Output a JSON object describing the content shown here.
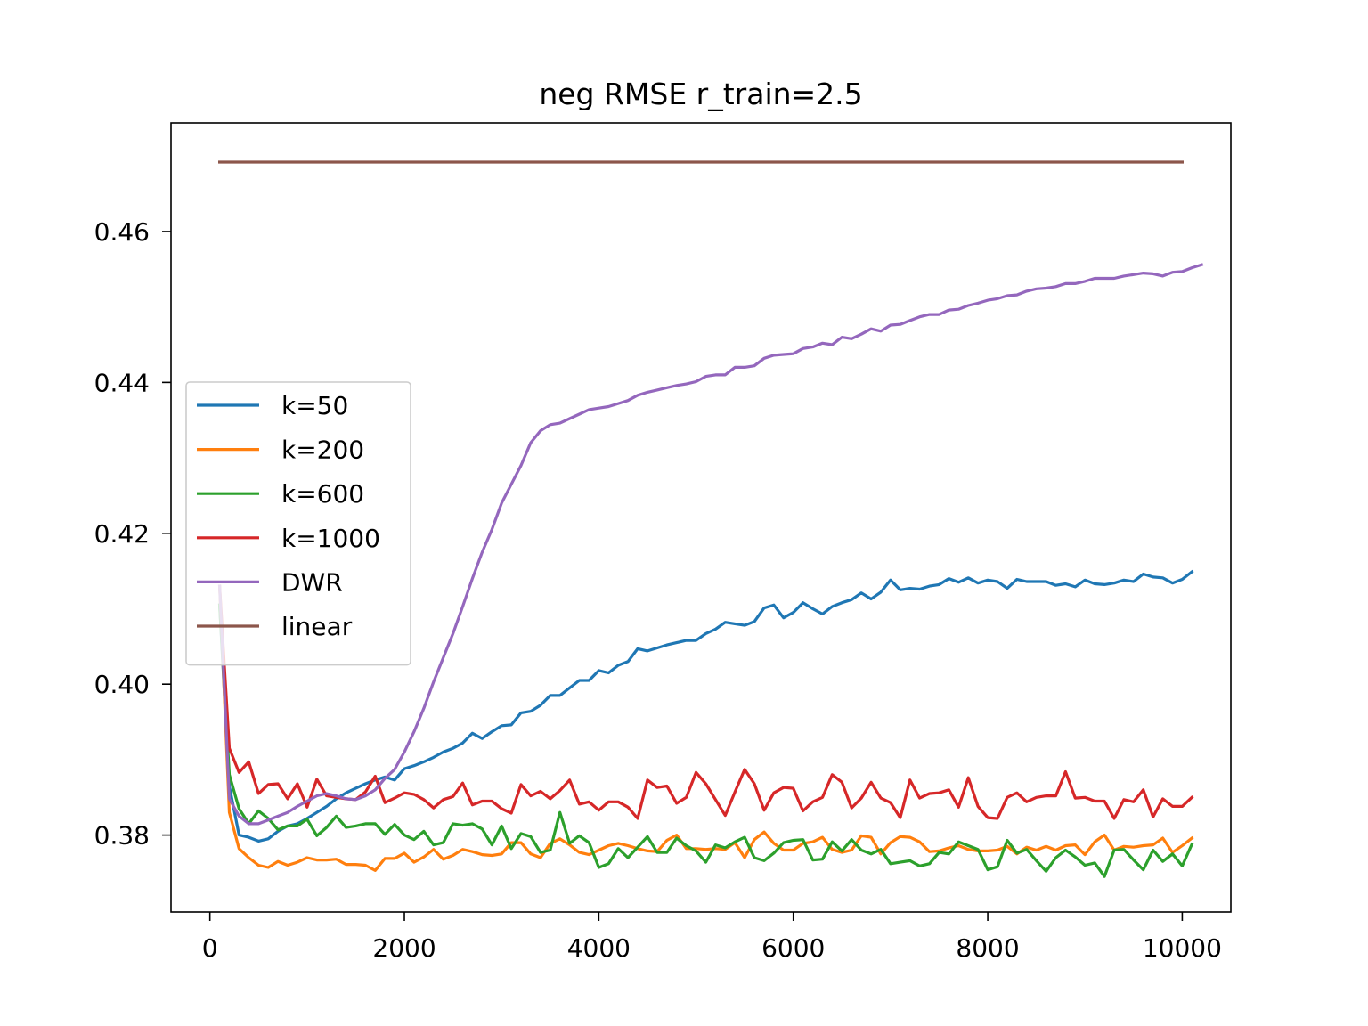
{
  "chart_data": {
    "type": "line",
    "title": "neg RMSE r_train=2.5",
    "xlabel": "",
    "ylabel": "",
    "xlim": [
      -400,
      10500
    ],
    "ylim": [
      0.3698,
      0.4744
    ],
    "xticks": [
      0,
      2000,
      4000,
      6000,
      8000,
      10000
    ],
    "xtick_labels": [
      "0",
      "2000",
      "4000",
      "6000",
      "8000",
      "10000"
    ],
    "yticks": [
      0.38,
      0.4,
      0.42,
      0.44,
      0.46
    ],
    "ytick_labels": [
      "0.38",
      "0.40",
      "0.42",
      "0.44",
      "0.46"
    ],
    "grid": false,
    "legend_position": "center-left",
    "x_start": 100,
    "x_step": 100,
    "series": [
      {
        "name": "k=50",
        "color": "#1f77b4",
        "values": [
          0.4105,
          0.3865,
          0.38,
          0.3797,
          0.3792,
          0.3795,
          0.3805,
          0.3812,
          0.3815,
          0.3822,
          0.383,
          0.3838,
          0.3848,
          0.3856,
          0.3862,
          0.3868,
          0.3873,
          0.3877,
          0.3873,
          0.3888,
          0.3892,
          0.3897,
          0.3903,
          0.391,
          0.3915,
          0.3922,
          0.3935,
          0.3928,
          0.3937,
          0.3945,
          0.3946,
          0.3962,
          0.3964,
          0.3972,
          0.3985,
          0.3985,
          0.3995,
          0.4005,
          0.4005,
          0.4018,
          0.4015,
          0.4025,
          0.403,
          0.4047,
          0.4044,
          0.4048,
          0.4052,
          0.4055,
          0.4058,
          0.4058,
          0.4067,
          0.4073,
          0.4082,
          0.408,
          0.4078,
          0.4083,
          0.4101,
          0.4105,
          0.4088,
          0.4095,
          0.4108,
          0.41,
          0.4093,
          0.4103,
          0.4108,
          0.4112,
          0.4121,
          0.4113,
          0.4122,
          0.4138,
          0.4125,
          0.4127,
          0.4126,
          0.413,
          0.4132,
          0.414,
          0.4135,
          0.4141,
          0.4134,
          0.4138,
          0.4136,
          0.4127,
          0.4139,
          0.4136,
          0.4136,
          0.4136,
          0.4131,
          0.4133,
          0.4129,
          0.4138,
          0.4133,
          0.4132,
          0.4134,
          0.4138,
          0.4136,
          0.4146,
          0.4142,
          0.4141,
          0.4134,
          0.4139,
          0.4149
        ]
      },
      {
        "name": "k=200",
        "color": "#ff7f0e",
        "values": [
          0.413,
          0.383,
          0.3782,
          0.377,
          0.376,
          0.3757,
          0.3765,
          0.376,
          0.3764,
          0.377,
          0.3767,
          0.3767,
          0.3768,
          0.3761,
          0.3761,
          0.376,
          0.3753,
          0.3769,
          0.3769,
          0.3776,
          0.3764,
          0.3771,
          0.3781,
          0.3768,
          0.3773,
          0.3781,
          0.3778,
          0.3774,
          0.3773,
          0.3775,
          0.379,
          0.379,
          0.3775,
          0.377,
          0.3789,
          0.3795,
          0.3787,
          0.3777,
          0.3774,
          0.378,
          0.3786,
          0.3789,
          0.3786,
          0.3782,
          0.3779,
          0.3778,
          0.3793,
          0.38,
          0.3782,
          0.3782,
          0.3781,
          0.3782,
          0.3781,
          0.379,
          0.377,
          0.3794,
          0.3804,
          0.3789,
          0.378,
          0.378,
          0.3789,
          0.3791,
          0.3797,
          0.3781,
          0.3777,
          0.378,
          0.3799,
          0.3797,
          0.3775,
          0.379,
          0.3798,
          0.3797,
          0.3791,
          0.3778,
          0.3779,
          0.3783,
          0.3786,
          0.3781,
          0.3779,
          0.3779,
          0.378,
          0.3785,
          0.3775,
          0.3784,
          0.378,
          0.3785,
          0.378,
          0.3786,
          0.3787,
          0.3774,
          0.3791,
          0.38,
          0.378,
          0.3785,
          0.3784,
          0.3786,
          0.3787,
          0.3796,
          0.3777,
          0.3786,
          0.3796
        ]
      },
      {
        "name": "k=600",
        "color": "#2ca02c",
        "values": [
          0.4105,
          0.388,
          0.3835,
          0.3815,
          0.3832,
          0.3822,
          0.3807,
          0.3812,
          0.3812,
          0.3821,
          0.3799,
          0.381,
          0.3825,
          0.381,
          0.3812,
          0.3815,
          0.3815,
          0.3801,
          0.3814,
          0.38,
          0.3794,
          0.3805,
          0.3787,
          0.379,
          0.3815,
          0.3813,
          0.3815,
          0.3808,
          0.3787,
          0.3812,
          0.3782,
          0.3802,
          0.3798,
          0.3777,
          0.378,
          0.383,
          0.3789,
          0.3799,
          0.379,
          0.3757,
          0.3762,
          0.3782,
          0.377,
          0.3784,
          0.3798,
          0.3777,
          0.3777,
          0.3796,
          0.3786,
          0.3779,
          0.3764,
          0.3787,
          0.3783,
          0.3791,
          0.3797,
          0.377,
          0.3766,
          0.3776,
          0.379,
          0.3793,
          0.3794,
          0.3767,
          0.3768,
          0.3791,
          0.3779,
          0.3794,
          0.378,
          0.3775,
          0.3781,
          0.3762,
          0.3764,
          0.3766,
          0.3759,
          0.3762,
          0.3777,
          0.3775,
          0.3791,
          0.3786,
          0.3781,
          0.3754,
          0.3758,
          0.3793,
          0.3776,
          0.3781,
          0.3766,
          0.3752,
          0.377,
          0.378,
          0.3771,
          0.376,
          0.3763,
          0.3745,
          0.378,
          0.3781,
          0.3767,
          0.3754,
          0.378,
          0.3765,
          0.3775,
          0.3759,
          0.3788
        ]
      },
      {
        "name": "k=1000",
        "color": "#d62728",
        "values": [
          0.413,
          0.3915,
          0.3883,
          0.3897,
          0.3855,
          0.3867,
          0.3868,
          0.3848,
          0.3868,
          0.3837,
          0.3874,
          0.3852,
          0.385,
          0.3848,
          0.3847,
          0.3857,
          0.3878,
          0.3843,
          0.3849,
          0.3856,
          0.3854,
          0.3847,
          0.3836,
          0.3847,
          0.3851,
          0.3869,
          0.384,
          0.3845,
          0.3845,
          0.3835,
          0.3829,
          0.3867,
          0.3852,
          0.3858,
          0.3848,
          0.3859,
          0.3873,
          0.3841,
          0.3844,
          0.3833,
          0.3844,
          0.3844,
          0.3837,
          0.3822,
          0.3873,
          0.3863,
          0.3865,
          0.3842,
          0.385,
          0.3883,
          0.3868,
          0.3847,
          0.3826,
          0.3857,
          0.3887,
          0.3868,
          0.3833,
          0.3856,
          0.3863,
          0.3862,
          0.3832,
          0.3844,
          0.385,
          0.388,
          0.387,
          0.3836,
          0.3849,
          0.387,
          0.3849,
          0.3843,
          0.3823,
          0.3873,
          0.3849,
          0.3855,
          0.3856,
          0.386,
          0.3837,
          0.3876,
          0.3838,
          0.3823,
          0.3822,
          0.385,
          0.3856,
          0.3844,
          0.385,
          0.3852,
          0.3852,
          0.3884,
          0.3849,
          0.385,
          0.3845,
          0.3845,
          0.3822,
          0.3847,
          0.3844,
          0.386,
          0.3824,
          0.3848,
          0.3838,
          0.3838,
          0.385
        ]
      },
      {
        "name": "DWR",
        "color": "#9467bd",
        "values": [
          0.413,
          0.3848,
          0.3825,
          0.3815,
          0.3815,
          0.382,
          0.3825,
          0.383,
          0.3838,
          0.3845,
          0.3852,
          0.3855,
          0.3852,
          0.3848,
          0.3847,
          0.3852,
          0.386,
          0.3875,
          0.3887,
          0.391,
          0.3937,
          0.3968,
          0.4003,
          0.4035,
          0.4067,
          0.4103,
          0.414,
          0.4175,
          0.4205,
          0.424,
          0.4265,
          0.429,
          0.432,
          0.4336,
          0.4344,
          0.4346,
          0.4352,
          0.4358,
          0.4364,
          0.4366,
          0.4368,
          0.4372,
          0.4376,
          0.4383,
          0.4387,
          0.439,
          0.4393,
          0.4396,
          0.4398,
          0.4401,
          0.4408,
          0.441,
          0.441,
          0.442,
          0.442,
          0.4422,
          0.4432,
          0.4436,
          0.4437,
          0.4438,
          0.4445,
          0.4447,
          0.4452,
          0.445,
          0.446,
          0.4458,
          0.4464,
          0.4471,
          0.4468,
          0.4476,
          0.4477,
          0.4482,
          0.4487,
          0.449,
          0.449,
          0.4496,
          0.4497,
          0.4502,
          0.4505,
          0.4509,
          0.4511,
          0.4515,
          0.4516,
          0.4521,
          0.4524,
          0.4525,
          0.4527,
          0.4531,
          0.4531,
          0.4534,
          0.4538,
          0.4538,
          0.4538,
          0.4541,
          0.4543,
          0.4545,
          0.4544,
          0.4541,
          0.4546,
          0.4547,
          0.4552,
          0.4556
        ]
      },
      {
        "name": "linear",
        "color": "#8c564b",
        "values": [
          0.4692,
          0.4692,
          0.4692,
          0.4692,
          0.4692,
          0.4692,
          0.4692,
          0.4692,
          0.4692,
          0.4692,
          0.4692,
          0.4692,
          0.4692,
          0.4692,
          0.4692,
          0.4692,
          0.4692,
          0.4692,
          0.4692,
          0.4692,
          0.4692,
          0.4692,
          0.4692,
          0.4692,
          0.4692,
          0.4692,
          0.4692,
          0.4692,
          0.4692,
          0.4692,
          0.4692,
          0.4692,
          0.4692,
          0.4692,
          0.4692,
          0.4692,
          0.4692,
          0.4692,
          0.4692,
          0.4692,
          0.4692,
          0.4692,
          0.4692,
          0.4692,
          0.4692,
          0.4692,
          0.4692,
          0.4692,
          0.4692,
          0.4692,
          0.4692,
          0.4692,
          0.4692,
          0.4692,
          0.4692,
          0.4692,
          0.4692,
          0.4692,
          0.4692,
          0.4692,
          0.4692,
          0.4692,
          0.4692,
          0.4692,
          0.4692,
          0.4692,
          0.4692,
          0.4692,
          0.4692,
          0.4692,
          0.4692,
          0.4692,
          0.4692,
          0.4692,
          0.4692,
          0.4692,
          0.4692,
          0.4692,
          0.4692,
          0.4692,
          0.4692,
          0.4692,
          0.4692,
          0.4692,
          0.4692,
          0.4692,
          0.4692,
          0.4692,
          0.4692,
          0.4692,
          0.4692,
          0.4692,
          0.4692,
          0.4692,
          0.4692,
          0.4692,
          0.4692,
          0.4692,
          0.4692,
          0.4692
        ]
      }
    ]
  }
}
